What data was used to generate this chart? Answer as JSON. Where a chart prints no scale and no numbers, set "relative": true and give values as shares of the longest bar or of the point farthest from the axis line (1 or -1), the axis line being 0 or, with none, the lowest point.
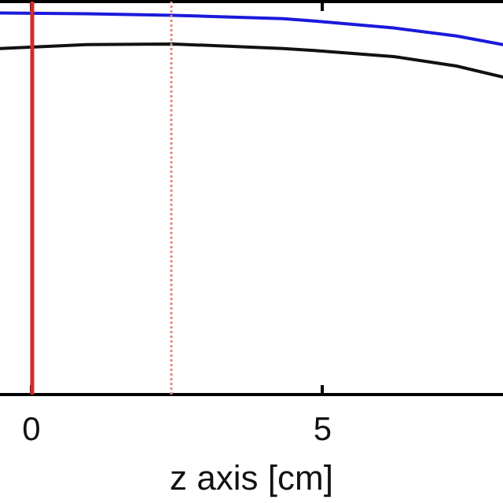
{
  "chart_data": {
    "type": "line",
    "xlabel": "z axis [cm]",
    "relative": true,
    "grid": false,
    "marker": "none",
    "line_style": "solid",
    "xlim": [
      -0.54,
      8.1
    ],
    "xticks": [
      0,
      5
    ],
    "series": [
      {
        "color": "#1a1adb",
        "x": [
          -0.54,
          0.95,
          2.43,
          4.32,
          4.86,
          6.22,
          7.3,
          8.1
        ],
        "values": [
          1.0,
          0.998,
          0.994,
          0.985,
          0.979,
          0.961,
          0.94,
          0.917
        ]
      },
      {
        "color": "#111111",
        "x": [
          -0.54,
          0.95,
          2.43,
          4.32,
          4.86,
          6.22,
          7.3,
          8.1
        ],
        "values": [
          0.907,
          0.917,
          0.919,
          0.907,
          0.902,
          0.886,
          0.861,
          0.832
        ]
      }
    ],
    "ref_lines": [
      {
        "axis": "x",
        "value": 0,
        "color": "#d42a2a",
        "line_style": "solid"
      },
      {
        "axis": "x",
        "value": 2.4,
        "color": "#e08a8a",
        "line_style": "dotted"
      }
    ]
  }
}
